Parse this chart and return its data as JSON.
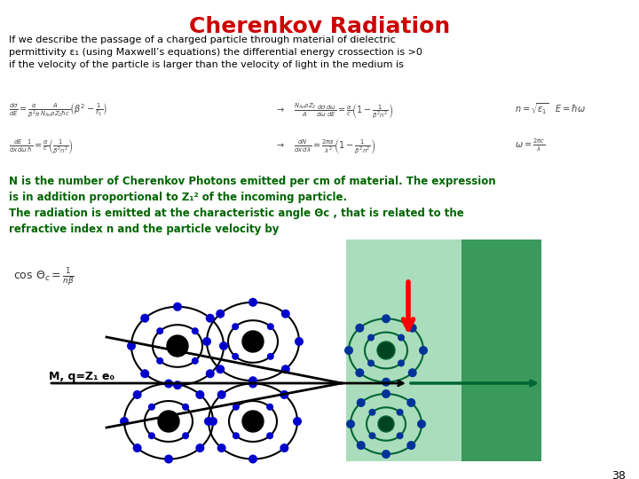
{
  "title": "Cherenkov Radiation",
  "title_color": "#CC0000",
  "title_fontsize": 18,
  "background_color": "#ffffff",
  "text_color_black": "#000000",
  "page_number": "38",
  "body_text1": "If we describe the passage of a charged particle through material of dielectric\npermittivity ε₁ (using Maxwell’s equations) the differential energy crossection is >0\nif the velocity of the particle is larger than the velocity of light in the medium is",
  "green_text": "N is the number of Cherenkov Photons emitted per cm of material. The expression\nis in addition proportional to Z₁² of the incoming particle.\nThe radiation is emitted at the characteristic angle Θᴄ , that is related to the\nrefractive index n and the particle velocity by",
  "label_M": "M, q=Z₁ e₀",
  "light_green_color": "#aaddbb",
  "dark_green_color": "#3a9a5c",
  "atom_ring_color_white": "#000000",
  "atom_core_color_white": "#000000",
  "atom_dot_color_white": "#0000CC",
  "atom_ring_color_green": "#006633",
  "atom_core_color_green": "#004422",
  "atom_dot_color_green": "#003399"
}
